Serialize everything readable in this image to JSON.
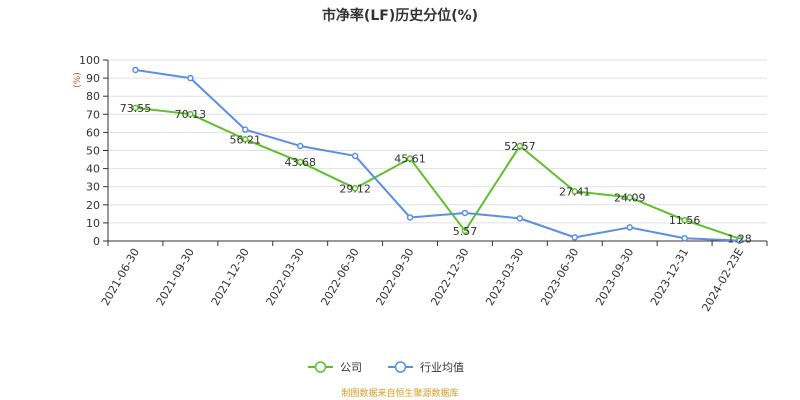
{
  "chart_data": {
    "type": "line",
    "title": "市净率(LF)历史分位(%)",
    "y_unit": "(%)",
    "categories": [
      "2021-06-30",
      "2021-09-30",
      "2021-12-30",
      "2022-03-30",
      "2022-06-30",
      "2022-09-30",
      "2022-12-30",
      "2023-03-30",
      "2023-06-30",
      "2023-09-30",
      "2023-12-31",
      "2024-02-23E"
    ],
    "ylim": [
      0,
      100
    ],
    "y_ticks": [
      0,
      10,
      20,
      30,
      40,
      50,
      60,
      70,
      80,
      90,
      100
    ],
    "grid": true,
    "legend_position": "bottom-center",
    "series": [
      {
        "name": "公司",
        "color": "#5ec12b",
        "show_labels": true,
        "values": [
          73.55,
          70.13,
          56.21,
          43.68,
          29.12,
          45.61,
          5.57,
          52.57,
          27.41,
          24.09,
          11.56,
          1.28
        ]
      },
      {
        "name": "行业均值",
        "color": "#5b8ee6",
        "show_labels": false,
        "values": [
          94.5,
          90.0,
          61.5,
          52.5,
          47.0,
          13.0,
          15.5,
          12.5,
          2.0,
          7.5,
          1.5,
          0.2
        ]
      }
    ]
  },
  "colors": {
    "unit_label": "#e0442f",
    "footer": "#d99a1f",
    "grid": "#e0e0e0",
    "axis": "#333333"
  },
  "footer": "制图数据来自恒生聚源数据库"
}
